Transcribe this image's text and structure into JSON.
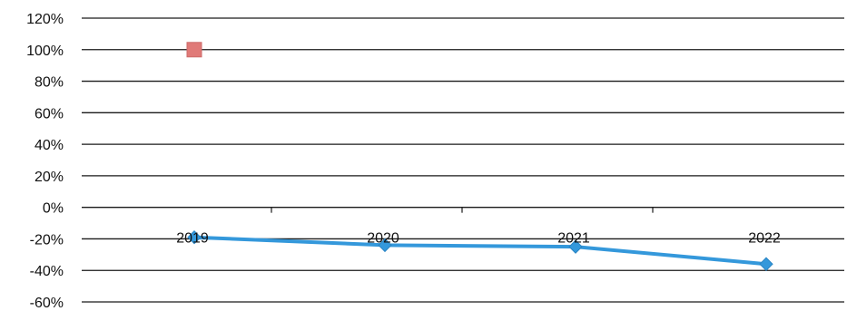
{
  "chart_data": {
    "type": "line",
    "categories": [
      "2019",
      "2020",
      "2021",
      "2022"
    ],
    "series": [
      {
        "values": [
          -19,
          -24,
          -25,
          -36
        ],
        "color": "#3498db",
        "marker": "diamond"
      },
      {
        "values": [
          100,
          null,
          null,
          null
        ],
        "color": "#e07a78",
        "marker": "square"
      }
    ],
    "ylim": [
      -60,
      120
    ],
    "y_ticks": [
      120,
      100,
      80,
      60,
      40,
      20,
      0,
      -20,
      -40,
      -60
    ],
    "y_tick_labels": [
      "120%",
      "100%",
      "80%",
      "60%",
      "40%",
      "20%",
      "0%",
      "-20%",
      "-40%",
      "-60%"
    ],
    "grid": true,
    "legend": "none",
    "title": "",
    "xlabel": "",
    "ylabel": ""
  }
}
